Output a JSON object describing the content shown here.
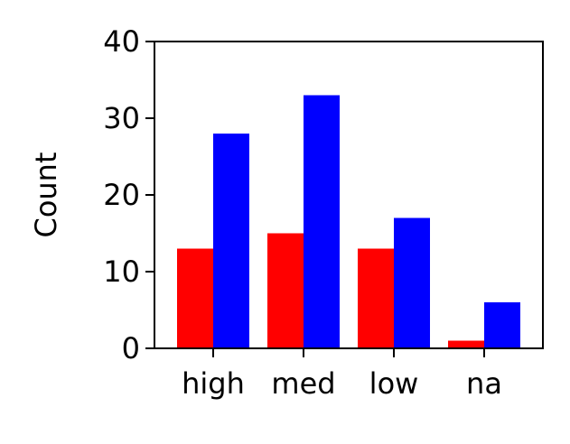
{
  "chart_data": {
    "type": "bar",
    "title": "",
    "xlabel": "",
    "ylabel": "Count",
    "categories": [
      "high",
      "med",
      "low",
      "na"
    ],
    "series": [
      {
        "color": "#ff0000",
        "values": [
          13,
          15,
          13,
          1
        ]
      },
      {
        "color": "#0000ff",
        "values": [
          28,
          33,
          17,
          6
        ]
      }
    ],
    "ylim": [
      0,
      40
    ],
    "yticks": [
      0,
      10,
      20,
      30,
      40
    ],
    "grid": false,
    "legend": "none"
  }
}
